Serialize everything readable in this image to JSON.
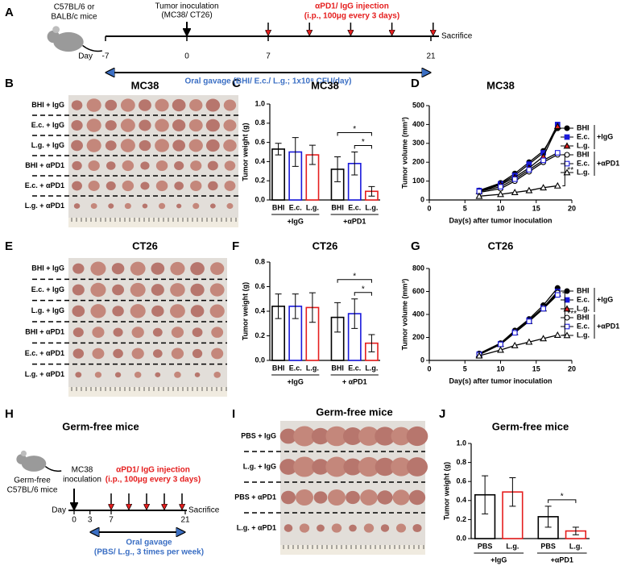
{
  "panels": [
    "A",
    "B",
    "C",
    "D",
    "E",
    "F",
    "G",
    "H",
    "I",
    "J"
  ],
  "timeline_a": {
    "mouse": [
      "C57BL/6 or",
      "BALB/c mice"
    ],
    "inoculation": [
      "Tumor inoculation",
      "(MC38/ CT26)"
    ],
    "injection": [
      "αPD1/ IgG injection",
      "(i.p., 100μg every 3 days)"
    ],
    "day_label": "Day",
    "days": [
      -7,
      0,
      7,
      21
    ],
    "end": "Sacrifice",
    "gavage": "Oral gavage (BHI/ E.c./ L.g.; 1x10⁸ CFU/day)"
  },
  "photo_b": {
    "title": "MC38",
    "rows": [
      "BHI + IgG",
      "E.c. + IgG",
      "L.g. + IgG",
      "BHI + αPD1",
      "E.c. + αPD1",
      "L.g. + αPD1"
    ]
  },
  "photo_e": {
    "title": "CT26",
    "rows": [
      "BHI + IgG",
      "E.c. + IgG",
      "L.g. + IgG",
      "BHI + αPD1",
      "E.c. + αPD1",
      "L.g. + αPD1"
    ]
  },
  "timeline_h": {
    "title": "Germ-free mice",
    "mouse": [
      "Germ-free",
      "C57BL/6 mice"
    ],
    "inoculation": [
      "MC38",
      "inoculation"
    ],
    "injection": [
      "αPD1/ IgG injection",
      "(i.p., 100μg every 3 days)"
    ],
    "day_label": "Day",
    "days": [
      0,
      3,
      7,
      21
    ],
    "end": "Sacrifice",
    "gavage": [
      "Oral gavage",
      "(PBS/ L.g., 3 times per week)"
    ]
  },
  "photo_i": {
    "title": "Germ-free mice",
    "rows": [
      "PBS + IgG",
      "L.g. + IgG",
      "PBS + αPD1",
      "L.g. + αPD1"
    ]
  },
  "chart_data": [
    {
      "type": "bar",
      "title": "MC38",
      "y_label": "Tumor weight (g)",
      "categories": [
        "BHI",
        "E.c.",
        "L.g.",
        "BHI",
        "E.c.",
        "L.g."
      ],
      "groups": [
        "+IgG",
        "+αPD1"
      ],
      "values": [
        0.53,
        0.5,
        0.47,
        0.32,
        0.38,
        0.09
      ],
      "errors": [
        0.06,
        0.15,
        0.1,
        0.13,
        0.12,
        0.05
      ],
      "colors": [
        "#000000",
        "#1a1adb",
        "#e51e1e",
        "#000000",
        "#1a1adb",
        "#e51e1e"
      ],
      "ylim": [
        0,
        1.0
      ],
      "yticks": [
        {
          "value": 0,
          "label": "0.0"
        },
        {
          "value": 0.2,
          "label": "0.2"
        },
        {
          "value": 0.4,
          "label": "0.4"
        },
        {
          "value": 0.6,
          "label": "0.6"
        },
        {
          "value": 0.8,
          "label": "0.8"
        },
        {
          "value": 1.0,
          "label": "1.0"
        }
      ],
      "annotations": [
        "*",
        "*"
      ]
    },
    {
      "type": "line",
      "title": "MC38",
      "y_label": "Tumor volume (mm³)",
      "x_label": "Day(s) after tumor inoculation",
      "x": [
        7,
        10,
        12,
        14,
        16,
        18
      ],
      "xlim": [
        0,
        20
      ],
      "xticks": [
        0,
        5,
        10,
        15,
        20
      ],
      "ylim": [
        0,
        500
      ],
      "yticks": [
        0,
        100,
        200,
        300,
        400,
        500
      ],
      "legend": "upper right",
      "legend_groups": [
        "+IgG",
        "+αPD1"
      ],
      "annotation": "**",
      "series": [
        {
          "name": "BHI",
          "color": "#000000",
          "marker": "circle",
          "filled": true,
          "values": [
            50,
            90,
            140,
            200,
            260,
            380
          ]
        },
        {
          "name": "E.c.",
          "color": "#1a1adb",
          "marker": "square",
          "filled": true,
          "values": [
            50,
            85,
            130,
            190,
            250,
            400
          ]
        },
        {
          "name": "L.g.",
          "color": "#e51e1e",
          "marker": "triangle",
          "filled": true,
          "values": [
            45,
            80,
            120,
            170,
            230,
            390
          ]
        },
        {
          "name": "BHI",
          "color": "#000000",
          "marker": "circle",
          "filled": false,
          "values": [
            40,
            60,
            100,
            150,
            200,
            240
          ]
        },
        {
          "name": "E.c.",
          "color": "#1a1adb",
          "marker": "square",
          "filled": false,
          "values": [
            45,
            70,
            110,
            160,
            210,
            250
          ]
        },
        {
          "name": "L.g.",
          "color": "#e51e1e",
          "marker": "triangle",
          "filled": false,
          "values": [
            20,
            30,
            40,
            50,
            65,
            75
          ]
        }
      ]
    },
    {
      "type": "bar",
      "title": "CT26",
      "y_label": "Tumor weight (g)",
      "categories": [
        "BHI",
        "E.c.",
        "L.g.",
        "BHI",
        "E.c.",
        "L.g."
      ],
      "groups": [
        "+IgG",
        "+ αPD1"
      ],
      "values": [
        0.44,
        0.44,
        0.43,
        0.35,
        0.38,
        0.14
      ],
      "errors": [
        0.1,
        0.1,
        0.12,
        0.12,
        0.12,
        0.07
      ],
      "colors": [
        "#000000",
        "#1a1adb",
        "#e51e1e",
        "#000000",
        "#1a1adb",
        "#e51e1e"
      ],
      "ylim": [
        0,
        0.8
      ],
      "yticks": [
        {
          "value": 0,
          "label": "0.0"
        },
        {
          "value": 0.2,
          "label": "0.2"
        },
        {
          "value": 0.4,
          "label": "0.4"
        },
        {
          "value": 0.6,
          "label": "0.6"
        },
        {
          "value": 0.8,
          "label": "0.8"
        }
      ],
      "annotations": [
        "*",
        "*"
      ]
    },
    {
      "type": "line",
      "title": "CT26",
      "y_label": "Tumor volume (mm³)",
      "x_label": "Day(s) after tumor inoculation",
      "x": [
        7,
        10,
        12,
        14,
        16,
        18
      ],
      "xlim": [
        0,
        20
      ],
      "xticks": [
        0,
        5,
        10,
        15,
        20
      ],
      "ylim": [
        0,
        800
      ],
      "yticks": [
        0,
        200,
        400,
        600,
        800
      ],
      "legend": "upper right",
      "legend_groups": [
        "+IgG",
        "+αPD1"
      ],
      "annotation": "***",
      "series": [
        {
          "name": "BHI",
          "color": "#000000",
          "marker": "circle",
          "filled": true,
          "values": [
            60,
            150,
            260,
            360,
            480,
            630
          ]
        },
        {
          "name": "E.c.",
          "color": "#1a1adb",
          "marker": "square",
          "filled": true,
          "values": [
            55,
            145,
            250,
            350,
            460,
            600
          ]
        },
        {
          "name": "L.g.",
          "color": "#e51e1e",
          "marker": "triangle",
          "filled": true,
          "values": [
            50,
            140,
            245,
            340,
            450,
            580
          ]
        },
        {
          "name": "BHI",
          "color": "#000000",
          "marker": "circle",
          "filled": false,
          "values": [
            55,
            145,
            250,
            345,
            460,
            590
          ]
        },
        {
          "name": "E.c.",
          "color": "#1a1adb",
          "marker": "square",
          "filled": false,
          "values": [
            50,
            140,
            240,
            340,
            450,
            570
          ]
        },
        {
          "name": "L.g.",
          "color": "#e51e1e",
          "marker": "triangle",
          "filled": false,
          "values": [
            40,
            90,
            130,
            160,
            190,
            220
          ]
        }
      ]
    },
    {
      "type": "bar",
      "title": "Germ-free mice",
      "y_label": "Tumor weight (g)",
      "categories": [
        "PBS",
        "L.g.",
        "PBS",
        "L.g."
      ],
      "groups": [
        "+IgG",
        "+αPD1"
      ],
      "values": [
        0.46,
        0.49,
        0.23,
        0.08
      ],
      "errors": [
        0.2,
        0.15,
        0.11,
        0.04
      ],
      "colors": [
        "#000000",
        "#e51e1e",
        "#000000",
        "#e51e1e"
      ],
      "ylim": [
        0,
        1.0
      ],
      "yticks": [
        {
          "value": 0,
          "label": "0.0"
        },
        {
          "value": 0.2,
          "label": "0.2"
        },
        {
          "value": 0.4,
          "label": "0.4"
        },
        {
          "value": 0.6,
          "label": "0.6"
        },
        {
          "value": 0.8,
          "label": "0.8"
        },
        {
          "value": 1.0,
          "label": "1.0"
        }
      ],
      "annotations": [
        "*"
      ]
    }
  ]
}
